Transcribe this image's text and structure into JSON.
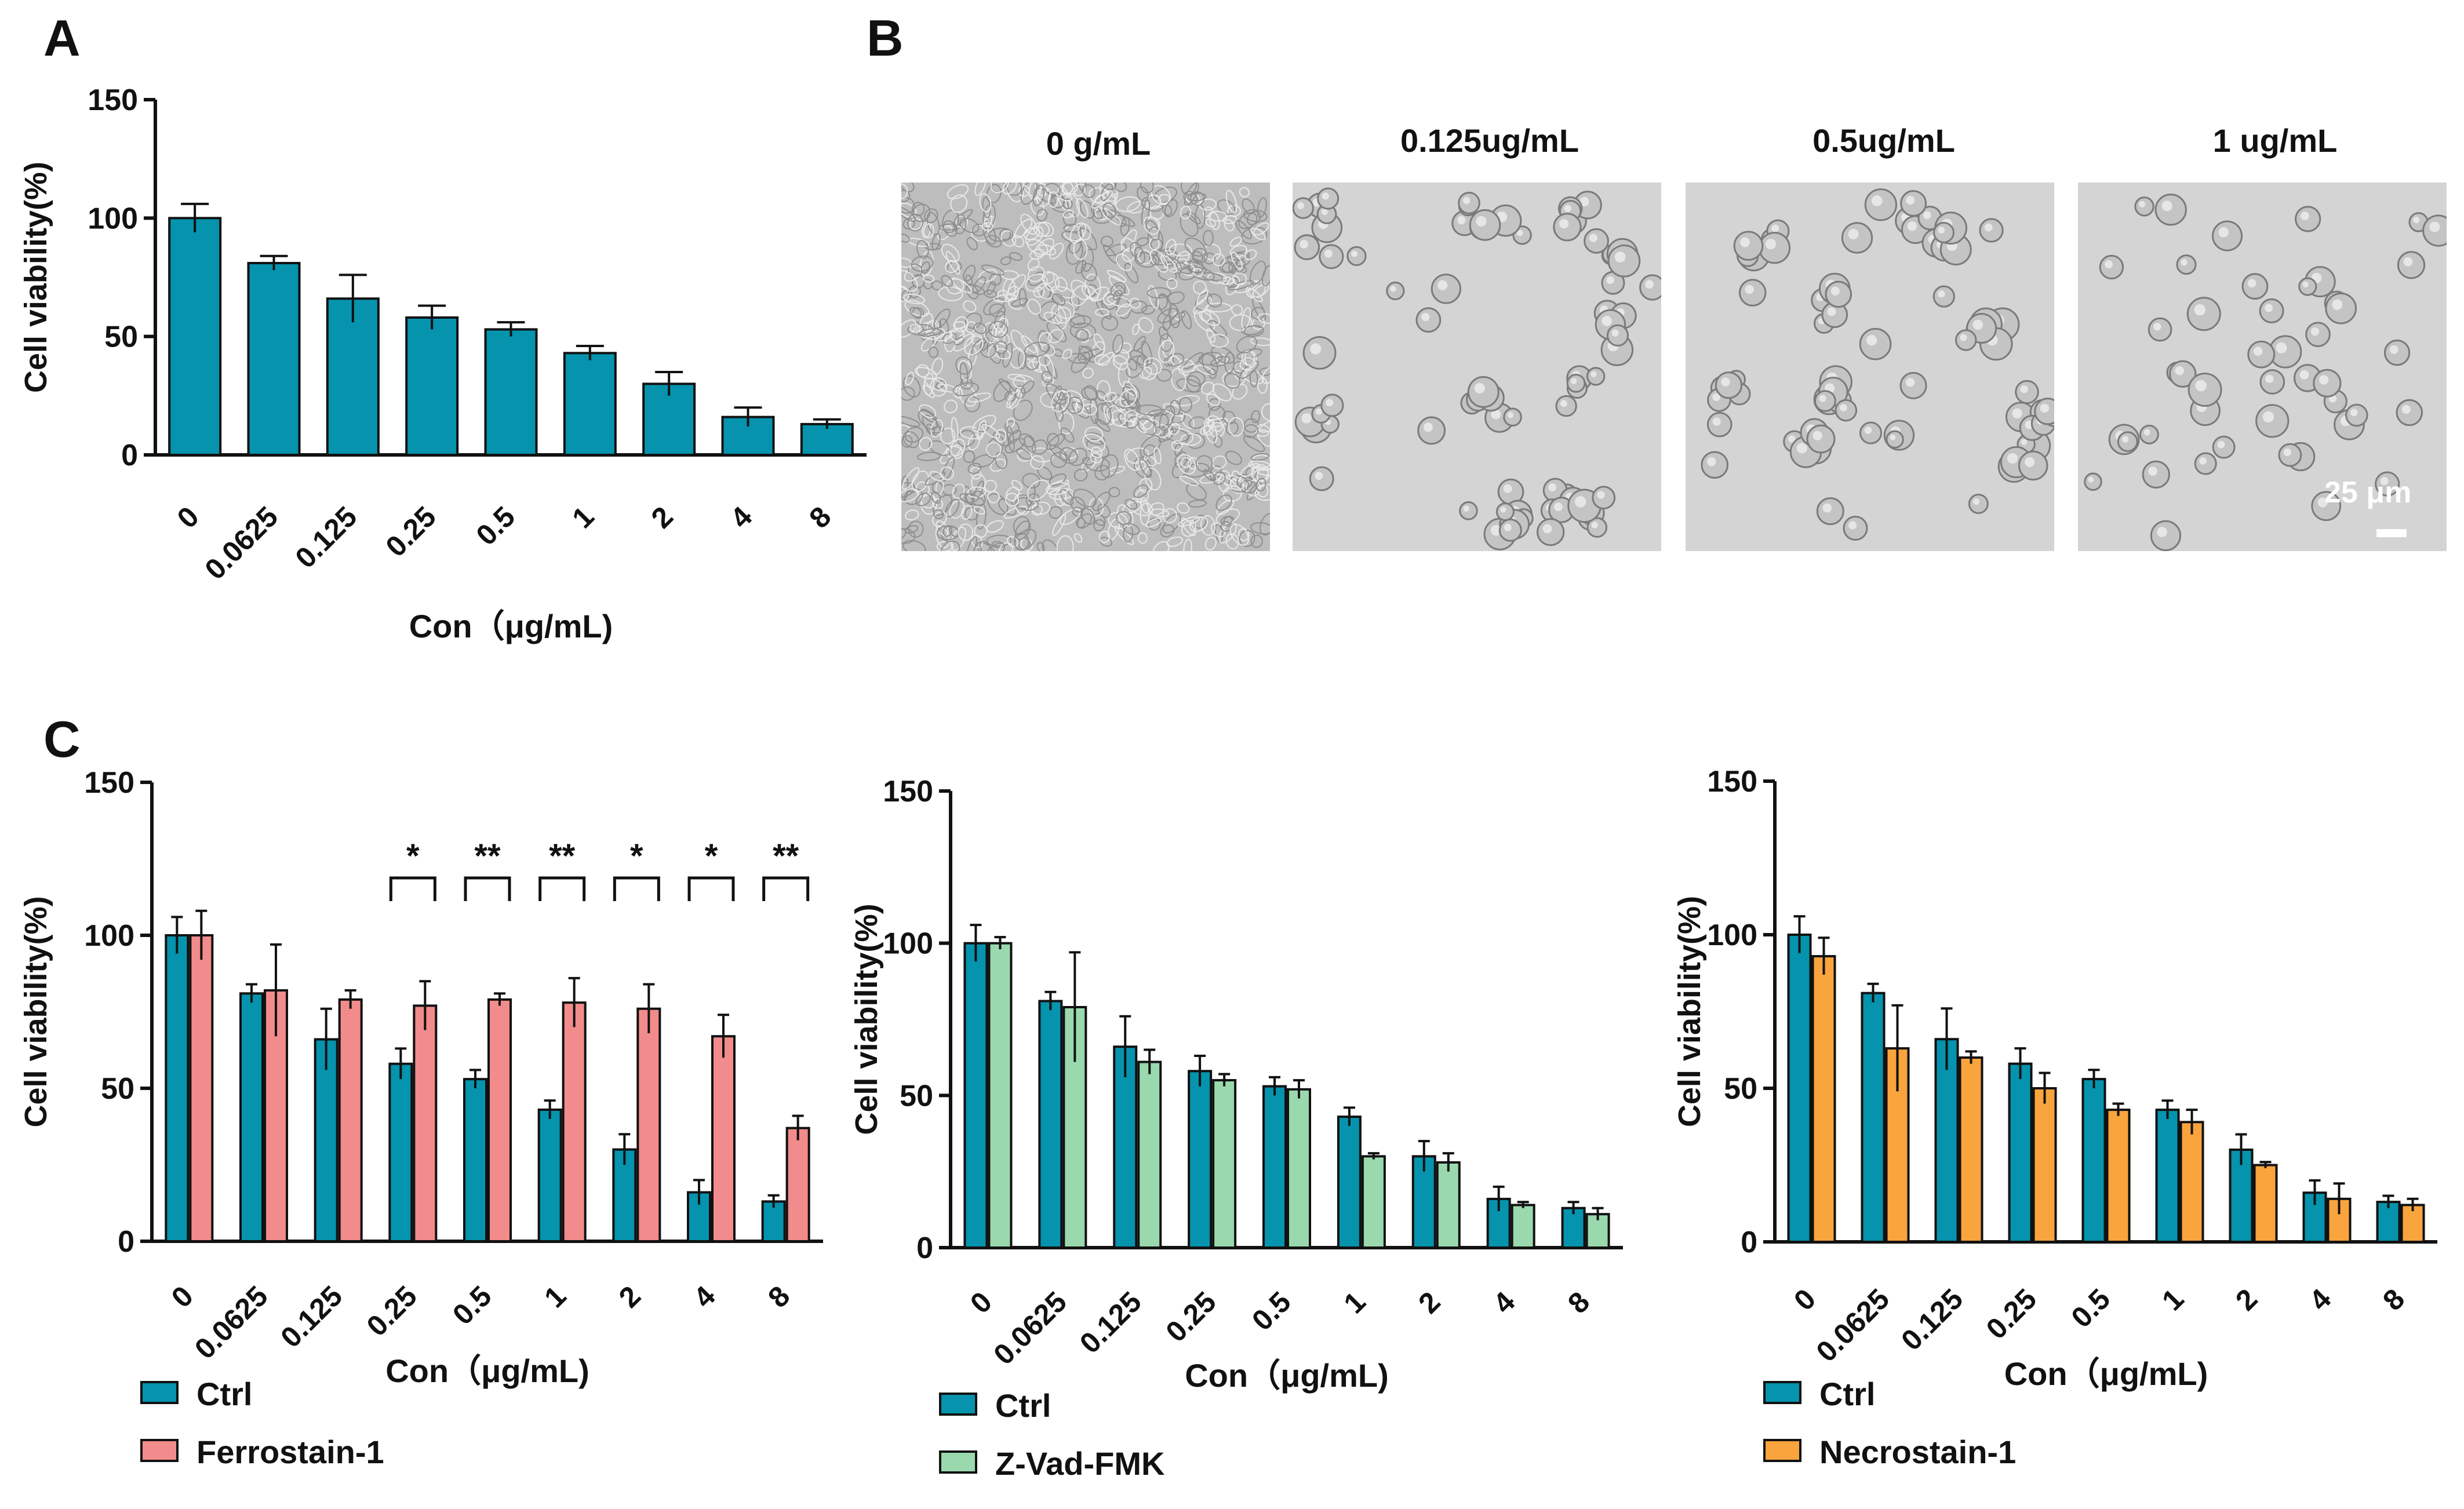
{
  "panel_letters": {
    "a": "A",
    "b": "B",
    "c": "C"
  },
  "micrographs": {
    "images": [
      {
        "label": "0 g/mL",
        "density": "confluent"
      },
      {
        "label": "0.125ug/mL",
        "density": "clusters"
      },
      {
        "label": "0.5ug/mL",
        "density": "clusters"
      },
      {
        "label": "1 ug/mL",
        "density": "sparse"
      }
    ],
    "scale_bar_label": "25 μm"
  },
  "colors": {
    "ctrl": "#0593ad",
    "ferrostatin": "#f28b8b",
    "zvad": "#9ad9ad",
    "necrostatin": "#f9a43d",
    "axis": "#111111"
  },
  "chart_data": [
    {
      "id": "A",
      "type": "bar",
      "categories": [
        "0",
        "0.0625",
        "0.125",
        "0.25",
        "0.5",
        "1",
        "2",
        "4",
        "8"
      ],
      "series": [
        {
          "name": "Ctrl",
          "color": "#0593ad",
          "values": [
            100,
            81,
            66,
            58,
            53,
            43,
            30,
            16,
            13
          ],
          "errors": [
            6,
            3,
            10,
            5,
            3,
            3,
            5,
            4,
            2
          ]
        }
      ],
      "xlabel": "Con（μg/mL)",
      "ylabel": "Cell viability(%)",
      "ylim": [
        0,
        150
      ],
      "yticks": [
        "0",
        "50",
        "100",
        "150"
      ],
      "legend": null,
      "significance": []
    },
    {
      "id": "C1",
      "type": "bar",
      "categories": [
        "0",
        "0.0625",
        "0.125",
        "0.25",
        "0.5",
        "1",
        "2",
        "4",
        "8"
      ],
      "series": [
        {
          "name": "Ctrl",
          "color": "#0593ad",
          "values": [
            100,
            81,
            66,
            58,
            53,
            43,
            30,
            16,
            13
          ],
          "errors": [
            6,
            3,
            10,
            5,
            3,
            3,
            5,
            4,
            2
          ]
        },
        {
          "name": "Ferrostain-1",
          "color": "#f28b8b",
          "values": [
            100,
            82,
            79,
            77,
            79,
            78,
            76,
            67,
            37
          ],
          "errors": [
            8,
            15,
            3,
            8,
            2,
            8,
            8,
            7,
            4
          ]
        }
      ],
      "xlabel": "Con（μg/mL)",
      "ylabel": "Cell viability(%)",
      "ylim": [
        0,
        150
      ],
      "yticks": [
        "0",
        "50",
        "100",
        "150"
      ],
      "legend": "bottom-left",
      "significance": [
        "",
        "",
        "",
        "*",
        "**",
        "**",
        "*",
        "*",
        "**"
      ]
    },
    {
      "id": "C2",
      "type": "bar",
      "categories": [
        "0",
        "0.0625",
        "0.125",
        "0.25",
        "0.5",
        "1",
        "2",
        "4",
        "8"
      ],
      "series": [
        {
          "name": "Ctrl",
          "color": "#0593ad",
          "values": [
            100,
            81,
            66,
            58,
            53,
            43,
            30,
            16,
            13
          ],
          "errors": [
            6,
            3,
            10,
            5,
            3,
            3,
            5,
            4,
            2
          ]
        },
        {
          "name": "Z-Vad-FMK",
          "color": "#9ad9ad",
          "values": [
            100,
            79,
            61,
            55,
            52,
            30,
            28,
            14,
            11
          ],
          "errors": [
            2,
            18,
            4,
            2,
            3,
            1,
            3,
            1,
            2
          ]
        }
      ],
      "xlabel": "Con（μg/mL)",
      "ylabel": "Cell viability(%)",
      "ylim": [
        0,
        150
      ],
      "yticks": [
        "0",
        "50",
        "100",
        "150"
      ],
      "legend": "bottom-left",
      "significance": []
    },
    {
      "id": "C3",
      "type": "bar",
      "categories": [
        "0",
        "0.0625",
        "0.125",
        "0.25",
        "0.5",
        "1",
        "2",
        "4",
        "8"
      ],
      "series": [
        {
          "name": "Ctrl",
          "color": "#0593ad",
          "values": [
            100,
            81,
            66,
            58,
            53,
            43,
            30,
            16,
            13
          ],
          "errors": [
            6,
            3,
            10,
            5,
            3,
            3,
            5,
            4,
            2
          ]
        },
        {
          "name": "Necrostain-1",
          "color": "#f9a43d",
          "values": [
            93,
            63,
            60,
            50,
            43,
            39,
            25,
            14,
            12
          ],
          "errors": [
            6,
            14,
            2,
            5,
            2,
            4,
            1,
            5,
            2
          ]
        }
      ],
      "xlabel": "Con（μg/mL)",
      "ylabel": "Cell viability(%)",
      "ylim": [
        0,
        150
      ],
      "yticks": [
        "0",
        "50",
        "100",
        "150"
      ],
      "legend": "bottom-left",
      "significance": []
    }
  ]
}
